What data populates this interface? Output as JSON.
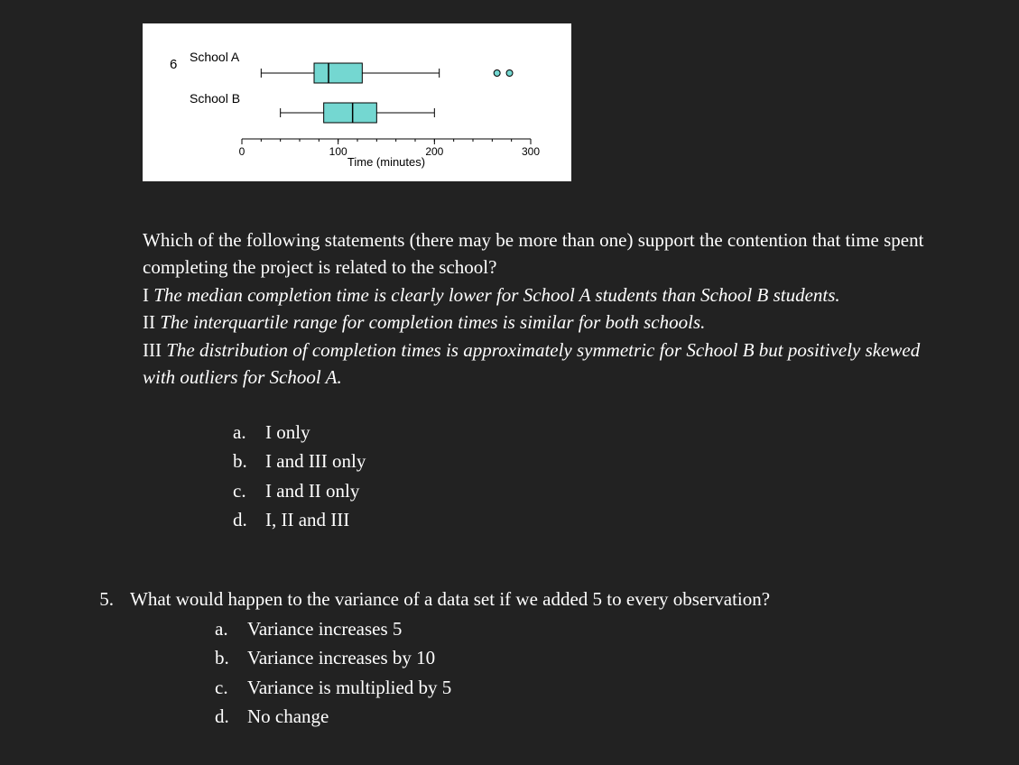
{
  "figure": {
    "labelNumber": "6",
    "labelA": "School A",
    "labelB": "School B",
    "axisLabel": "Time (minutes)",
    "ticks": [
      "0",
      "100",
      "200",
      "300"
    ],
    "xAxis": {
      "startPx": 110,
      "endPx": 430,
      "min": 0,
      "max": 300
    },
    "boxA": {
      "y": 44,
      "min": 20,
      "q1": 75,
      "median": 90,
      "q3": 125,
      "max": 205,
      "outliers": [
        265,
        278
      ]
    },
    "boxB": {
      "y": 88,
      "min": 40,
      "q1": 85,
      "median": 115,
      "q3": 140,
      "max": 200,
      "outliers": []
    },
    "boxHeight": 22,
    "colors": {
      "boxFill": "#74d7d1",
      "boxStroke": "#000000",
      "axisStroke": "#000000",
      "outlierFill": "#74d7d1",
      "outlierStroke": "#000000",
      "background": "#ffffff",
      "text": "#000000"
    },
    "fontSizePt": 11
  },
  "q4": {
    "prompt": "Which of the following statements (there may be more than one) support the contention that time spent completing the project is related to the school?",
    "s1prefix": "I ",
    "s1": "The median completion time is clearly lower for School A students than School B students.",
    "s2prefix": "II ",
    "s2": "The interquartile range for completion times is similar for both schools.",
    "s3prefix": "III ",
    "s3": "The distribution of completion times is approximately symmetric for School B but positively skewed with outliers for School A.",
    "options": {
      "a": "I only",
      "b": "I and III only",
      "c": "I and II only",
      "d": "I, II and III"
    }
  },
  "q5": {
    "number": "5.",
    "prompt": "What would happen to the variance of a data set if we added 5 to every observation?",
    "options": {
      "a": "Variance increases 5",
      "b": "Variance increases by 10",
      "c": "Variance is multiplied by 5",
      "d": "No change"
    }
  },
  "labels": {
    "a": "a.",
    "b": "b.",
    "c": "c.",
    "d": "d."
  }
}
